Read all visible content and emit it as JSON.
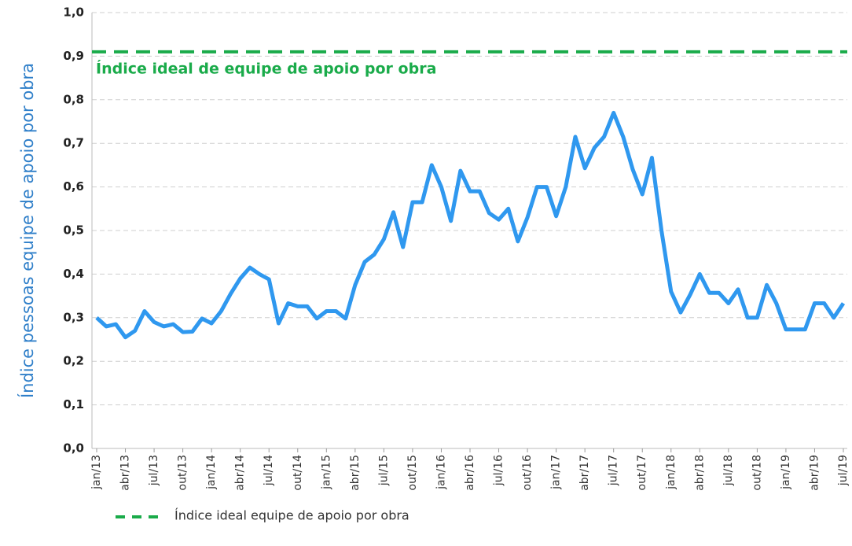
{
  "chart_data": {
    "type": "line",
    "y_label": "Índice pessoas equipe de apoio por obra",
    "categories": [
      "jan/13",
      null,
      null,
      "abr/13",
      null,
      null,
      "jul/13",
      null,
      null,
      "out/13",
      null,
      null,
      "jan/14",
      null,
      null,
      "abr/14",
      null,
      null,
      "jul/14",
      null,
      null,
      "out/14",
      null,
      null,
      "jan/15",
      null,
      null,
      "abr/15",
      null,
      null,
      "jul/15",
      null,
      null,
      "out/15",
      null,
      null,
      "jan/16",
      null,
      null,
      "abr/16",
      null,
      null,
      "jul/16",
      null,
      null,
      "out/16",
      null,
      null,
      "jan/17",
      null,
      null,
      "abr/17",
      null,
      null,
      "jul/17",
      null,
      null,
      "out/17",
      null,
      null,
      "jan/18",
      null,
      null,
      "abr/18",
      null,
      null,
      "jul/18",
      null,
      null,
      "out/18",
      null,
      null,
      "jan/19",
      null,
      null,
      "abr/19",
      null,
      null,
      "jul/19"
    ],
    "series": [
      {
        "color": "#2f98ef",
        "values": [
          0.3,
          0.28,
          0.285,
          0.255,
          0.27,
          0.315,
          0.29,
          0.28,
          0.285,
          0.267,
          0.268,
          0.298,
          0.287,
          0.315,
          0.355,
          0.39,
          0.415,
          0.4,
          0.388,
          0.287,
          0.333,
          0.326,
          0.326,
          0.298,
          0.315,
          0.315,
          0.298,
          0.375,
          0.428,
          0.445,
          0.48,
          0.542,
          0.462,
          0.565,
          0.565,
          0.65,
          0.6,
          0.522,
          0.637,
          0.59,
          0.59,
          0.54,
          0.525,
          0.55,
          0.475,
          0.53,
          0.6,
          0.6,
          0.533,
          0.6,
          0.715,
          0.643,
          0.69,
          0.715,
          0.77,
          0.715,
          0.64,
          0.583,
          0.667,
          0.5,
          0.36,
          0.312,
          0.353,
          0.4,
          0.357,
          0.357,
          0.333,
          0.365,
          0.3,
          0.3,
          0.375,
          0.333,
          0.273,
          0.273,
          0.273,
          0.333,
          0.333,
          0.3,
          0.333
        ]
      }
    ],
    "reference": {
      "value": 0.91,
      "color": "#1aab4a",
      "annotation": "Índice ideal de equipe de apoio por obra",
      "legend": "Índice ideal  equipe de apoio por obra"
    },
    "ylim": [
      0,
      1
    ],
    "yticks": [
      {
        "value": 0,
        "label": "0,0"
      },
      {
        "value": 0.1,
        "label": "0,1"
      },
      {
        "value": 0.2,
        "label": "0,2"
      },
      {
        "value": 0.3,
        "label": "0,3"
      },
      {
        "value": 0.4,
        "label": "0,4"
      },
      {
        "value": 0.5,
        "label": "0,5"
      },
      {
        "value": 0.6,
        "label": "0,6"
      },
      {
        "value": 0.7,
        "label": "0,7"
      },
      {
        "value": 0.8,
        "label": "0,8"
      },
      {
        "value": 0.9,
        "label": "0,9"
      },
      {
        "value": 1,
        "label": "1,0"
      }
    ],
    "grid": true
  }
}
